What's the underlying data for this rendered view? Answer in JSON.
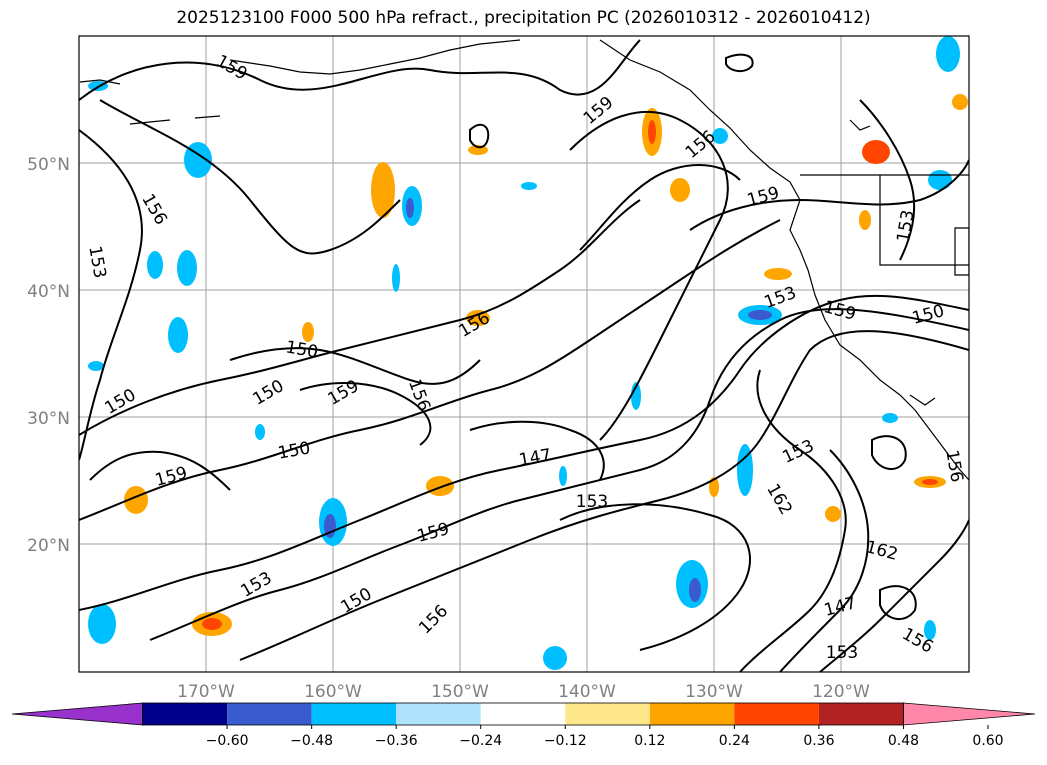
{
  "title": "2025123100 F000 500 hPa refract., precipitation PC (2026010312 - 2026010412)",
  "lat_labels": [
    "50°N",
    "40°N",
    "30°N",
    "20°N"
  ],
  "lon_labels": [
    "170°W",
    "160°W",
    "150°W",
    "140°W",
    "130°W",
    "120°W"
  ],
  "contour_labels": [
    {
      "text": "159",
      "name": "contour-label-159-a"
    },
    {
      "text": "159",
      "name": "contour-label-159-b"
    },
    {
      "text": "156",
      "name": "contour-label-156-a"
    },
    {
      "text": "156",
      "name": "contour-label-156-b"
    },
    {
      "text": "159",
      "name": "contour-label-159-c"
    },
    {
      "text": "153",
      "name": "contour-label-153-a"
    },
    {
      "text": "153",
      "name": "contour-label-153-b"
    },
    {
      "text": "159",
      "name": "contour-label-159-d"
    },
    {
      "text": "156",
      "name": "contour-label-156-c"
    },
    {
      "text": "159",
      "name": "contour-label-159-e"
    },
    {
      "text": "153",
      "name": "contour-label-153-c"
    },
    {
      "text": "150",
      "name": "contour-label-150-a"
    },
    {
      "text": "150",
      "name": "contour-label-150-b"
    },
    {
      "text": "150",
      "name": "contour-label-150-c"
    },
    {
      "text": "150",
      "name": "contour-label-150-d"
    },
    {
      "text": "156",
      "name": "contour-label-156-d"
    },
    {
      "text": "150",
      "name": "contour-label-150-e"
    },
    {
      "text": "159",
      "name": "contour-label-159-f"
    },
    {
      "text": "147",
      "name": "contour-label-147-a"
    },
    {
      "text": "153",
      "name": "contour-label-153-d"
    },
    {
      "text": "159",
      "name": "contour-label-159-g"
    },
    {
      "text": "153",
      "name": "contour-label-153-e"
    },
    {
      "text": "150",
      "name": "contour-label-150-f"
    },
    {
      "text": "156",
      "name": "contour-label-156-e"
    },
    {
      "text": "153",
      "name": "contour-label-153-f"
    },
    {
      "text": "162",
      "name": "contour-label-162-a"
    },
    {
      "text": "162",
      "name": "contour-label-162-b"
    },
    {
      "text": "147",
      "name": "contour-label-147-b"
    },
    {
      "text": "153",
      "name": "contour-label-153-g"
    },
    {
      "text": "156",
      "name": "contour-label-156-f"
    },
    {
      "text": "156",
      "name": "contour-label-156-g"
    },
    {
      "text": "159",
      "name": "contour-label-159-h"
    },
    {
      "text": "156",
      "name": "contour-label-156-h"
    }
  ],
  "colorbar": {
    "ticks": [
      "−0.60",
      "−0.48",
      "−0.36",
      "−0.24",
      "−0.12",
      "0.12",
      "0.24",
      "0.36",
      "0.48",
      "0.60"
    ],
    "colors": [
      "#9932cc",
      "#00008b",
      "#3a5bd0",
      "#00bfff",
      "#afe3fb",
      "#ffffff",
      "#ffe88c",
      "#ffa500",
      "#ff4500",
      "#b22222",
      "#ff88aa"
    ]
  }
}
